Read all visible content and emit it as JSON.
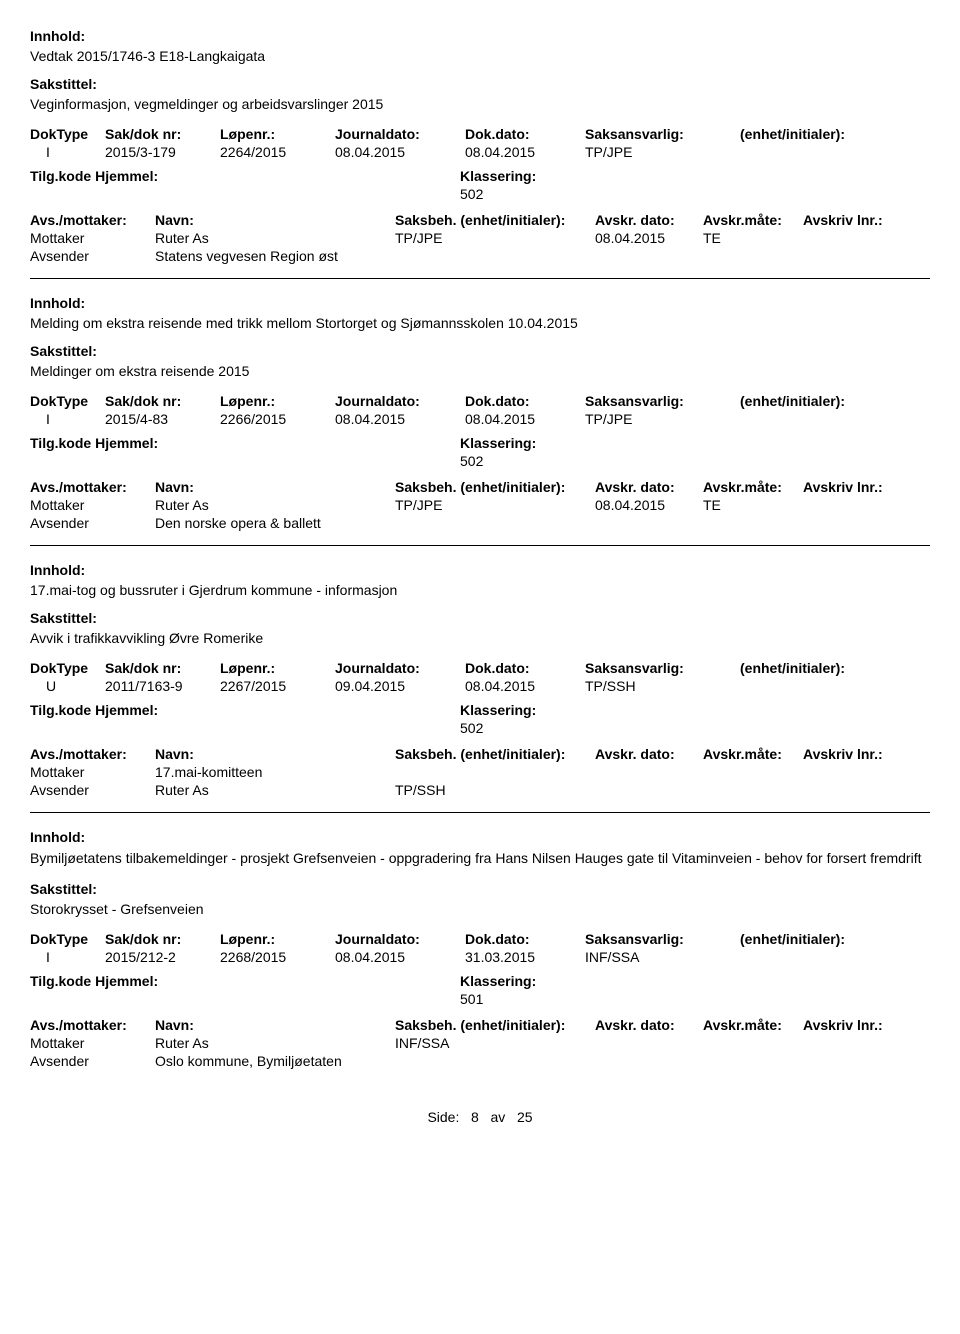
{
  "labels": {
    "innhold": "Innhold:",
    "sakstittel": "Sakstittel:",
    "doktype": "DokType",
    "sakdoknr": "Sak/dok nr:",
    "lopenr": "Løpenr.:",
    "journaldato": "Journaldato:",
    "dokdato": "Dok.dato:",
    "saksansvarlig": "Saksansvarlig:",
    "enhet": "(enhet/initialer):",
    "tilgkode": "Tilg.kode",
    "hjemmel": "Hjemmel:",
    "klassering": "Klassering:",
    "avsmottaker": "Avs./mottaker:",
    "navn": "Navn:",
    "saksbeh": "Saksbeh.",
    "saksbeh_enhet": "(enhet/initialer):",
    "avskrdato": "Avskr. dato:",
    "avskrmate": "Avskr.måte:",
    "avskrivlnr": "Avskriv lnr.:",
    "mottaker": "Mottaker",
    "avsender": "Avsender"
  },
  "records": [
    {
      "innhold": "Vedtak 2015/1746-3 E18-Langkaigata",
      "sakstittel": "Veginformasjon, vegmeldinger og arbeidsvarslinger 2015",
      "doktype": "I",
      "sakdoknr": "2015/3-179",
      "lopenr": "2264/2015",
      "journaldato": "08.04.2015",
      "dokdato": "08.04.2015",
      "saksansvarlig": "TP/JPE",
      "klassering": "502",
      "parties": [
        {
          "role": "Mottaker",
          "navn": "Ruter As",
          "saksbeh": "TP/JPE",
          "avskrdato": "08.04.2015",
          "avskrmate": "TE"
        },
        {
          "role": "Avsender",
          "navn": "Statens vegvesen Region øst",
          "saksbeh": "",
          "avskrdato": "",
          "avskrmate": ""
        }
      ]
    },
    {
      "innhold": "Melding om ekstra reisende med trikk mellom Stortorget og Sjømannsskolen 10.04.2015",
      "sakstittel": "Meldinger om ekstra reisende 2015",
      "doktype": "I",
      "sakdoknr": "2015/4-83",
      "lopenr": "2266/2015",
      "journaldato": "08.04.2015",
      "dokdato": "08.04.2015",
      "saksansvarlig": "TP/JPE",
      "klassering": "502",
      "parties": [
        {
          "role": "Mottaker",
          "navn": "Ruter As",
          "saksbeh": "TP/JPE",
          "avskrdato": "08.04.2015",
          "avskrmate": "TE"
        },
        {
          "role": "Avsender",
          "navn": "Den norske opera & ballett",
          "saksbeh": "",
          "avskrdato": "",
          "avskrmate": ""
        }
      ]
    },
    {
      "innhold": "17.mai-tog og bussruter i Gjerdrum kommune - informasjon",
      "sakstittel": "Avvik i trafikkavvikling Øvre Romerike",
      "doktype": "U",
      "sakdoknr": "2011/7163-9",
      "lopenr": "2267/2015",
      "journaldato": "09.04.2015",
      "dokdato": "08.04.2015",
      "saksansvarlig": "TP/SSH",
      "klassering": "502",
      "parties": [
        {
          "role": "Mottaker",
          "navn": "17.mai-komitteen",
          "saksbeh": "",
          "avskrdato": "",
          "avskrmate": ""
        },
        {
          "role": "Avsender",
          "navn": "Ruter As",
          "saksbeh": "TP/SSH",
          "avskrdato": "",
          "avskrmate": ""
        }
      ]
    },
    {
      "innhold": "Bymiljøetatens tilbakemeldinger - prosjekt Grefsenveien - oppgradering fra Hans Nilsen Hauges gate til Vitaminveien - behov for forsert fremdrift",
      "sakstittel": "Storokrysset - Grefsenveien",
      "doktype": "I",
      "sakdoknr": "2015/212-2",
      "lopenr": "2268/2015",
      "journaldato": "08.04.2015",
      "dokdato": "31.03.2015",
      "saksansvarlig": "INF/SSA",
      "klassering": "501",
      "parties": [
        {
          "role": "Mottaker",
          "navn": "Ruter As",
          "saksbeh": "INF/SSA",
          "avskrdato": "",
          "avskrmate": ""
        },
        {
          "role": "Avsender",
          "navn": "Oslo kommune, Bymiljøetaten",
          "saksbeh": "",
          "avskrdato": "",
          "avskrmate": ""
        }
      ]
    }
  ],
  "footer": {
    "side": "Side:",
    "page": "8",
    "av": "av",
    "total": "25"
  }
}
